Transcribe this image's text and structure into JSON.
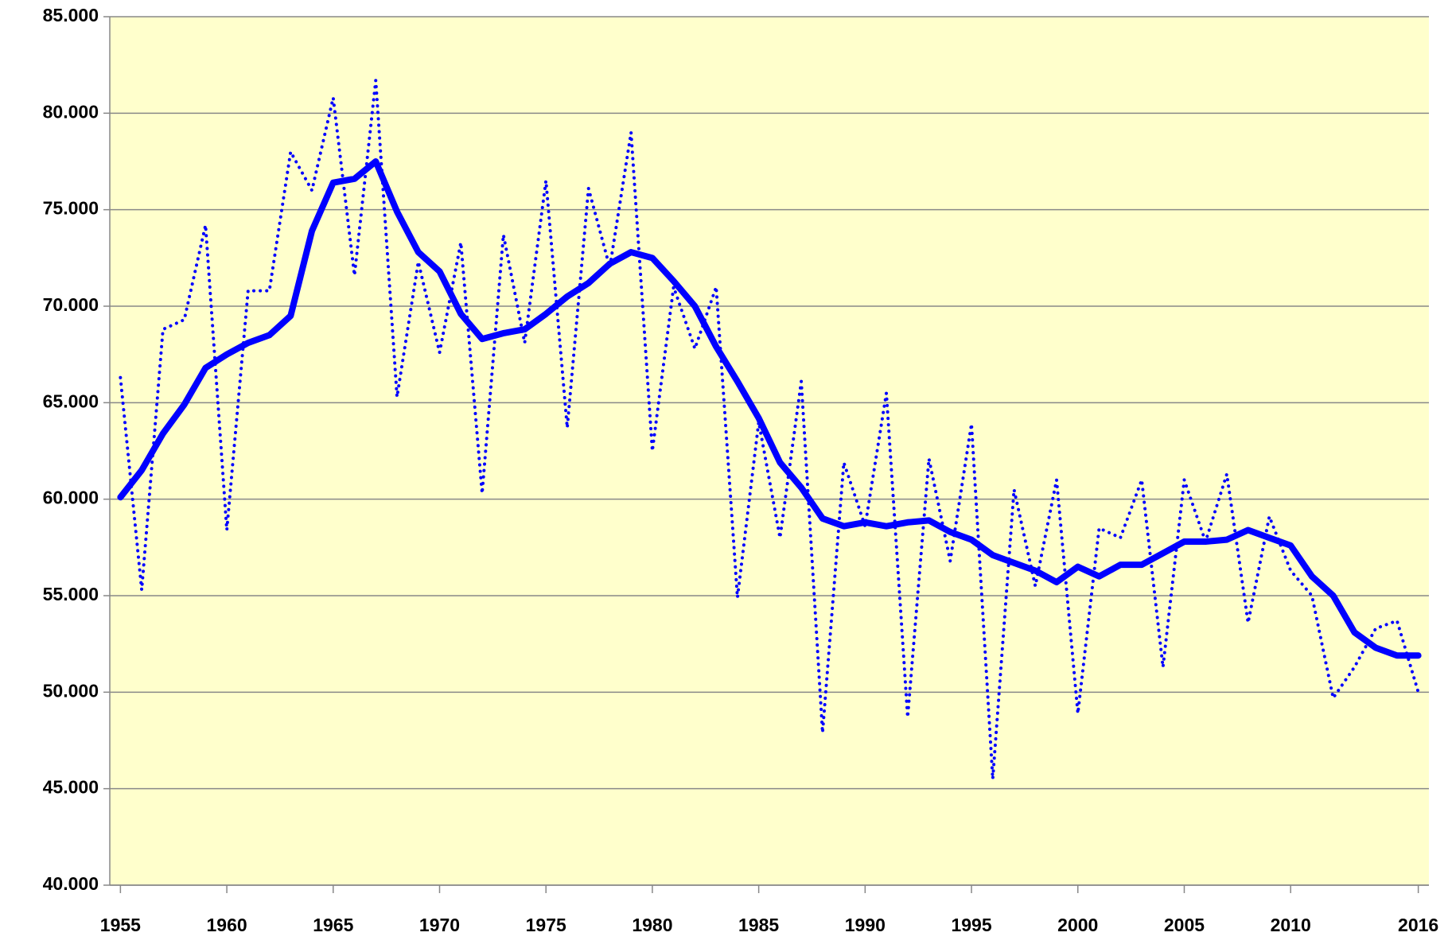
{
  "chart_data": {
    "type": "line",
    "x": [
      1955,
      1956,
      1957,
      1958,
      1959,
      1960,
      1961,
      1962,
      1963,
      1964,
      1965,
      1966,
      1967,
      1968,
      1969,
      1970,
      1971,
      1972,
      1973,
      1974,
      1975,
      1976,
      1977,
      1978,
      1979,
      1980,
      1981,
      1982,
      1983,
      1984,
      1985,
      1986,
      1987,
      1988,
      1989,
      1990,
      1991,
      1992,
      1993,
      1994,
      1995,
      1996,
      1997,
      1998,
      1999,
      2000,
      2001,
      2002,
      2003,
      2004,
      2005,
      2006,
      2007,
      2008,
      2009,
      2010,
      2011,
      2012,
      2013,
      2014,
      2015,
      2016
    ],
    "series": [
      {
        "color": "#0000ff",
        "style": "dotted",
        "values": [
          66300,
          55300,
          68800,
          69300,
          74200,
          58400,
          70800,
          70800,
          78000,
          76000,
          80800,
          71600,
          81700,
          65300,
          72300,
          67600,
          73300,
          60300,
          73700,
          68100,
          76500,
          63700,
          76100,
          72000,
          79000,
          62500,
          71000,
          67800,
          71000,
          54900,
          64000,
          58000,
          66100,
          47900,
          61900,
          58600,
          65500,
          48700,
          62100,
          56800,
          63900,
          45500,
          60500,
          55500,
          61000,
          48900,
          58500,
          58000,
          61000,
          51300,
          61000,
          57800,
          61300,
          53600,
          59100,
          56300,
          55000,
          49700,
          51300,
          53300,
          53700,
          50000
        ]
      },
      {
        "color": "#0000ff",
        "style": "solid",
        "values": [
          60100,
          61500,
          63400,
          64900,
          66800,
          67500,
          68100,
          68500,
          69500,
          73900,
          76400,
          76600,
          77500,
          74900,
          72800,
          71800,
          69600,
          68300,
          68600,
          68800,
          69600,
          70500,
          71200,
          72200,
          72800,
          72500,
          71300,
          70000,
          67900,
          66100,
          64200,
          61900,
          60600,
          59000,
          58600,
          58800,
          58600,
          58800,
          58900,
          58300,
          57900,
          57100,
          56700,
          56300,
          55700,
          56500,
          56000,
          56600,
          56600,
          57200,
          57800,
          57800,
          57900,
          58400,
          58000,
          57600,
          56000,
          55000,
          53100,
          52300,
          51900,
          51900
        ]
      }
    ],
    "xlim": [
      1954.5,
      2016.5
    ],
    "xticks": [
      1955,
      1960,
      1965,
      1970,
      1975,
      1980,
      1985,
      1990,
      1995,
      2000,
      2005,
      2010,
      2016
    ],
    "ylim": [
      40000,
      85000
    ],
    "yticks": [
      {
        "value": 40000,
        "label": "40.000"
      },
      {
        "value": 45000,
        "label": "45.000"
      },
      {
        "value": 50000,
        "label": "50.000"
      },
      {
        "value": 55000,
        "label": "55.000"
      },
      {
        "value": 60000,
        "label": "60.000"
      },
      {
        "value": 65000,
        "label": "65.000"
      },
      {
        "value": 70000,
        "label": "70.000"
      },
      {
        "value": 75000,
        "label": "75.000"
      },
      {
        "value": 80000,
        "label": "80.000"
      },
      {
        "value": 85000,
        "label": "85.000"
      }
    ],
    "grid": true,
    "background": "#ffffcc"
  }
}
